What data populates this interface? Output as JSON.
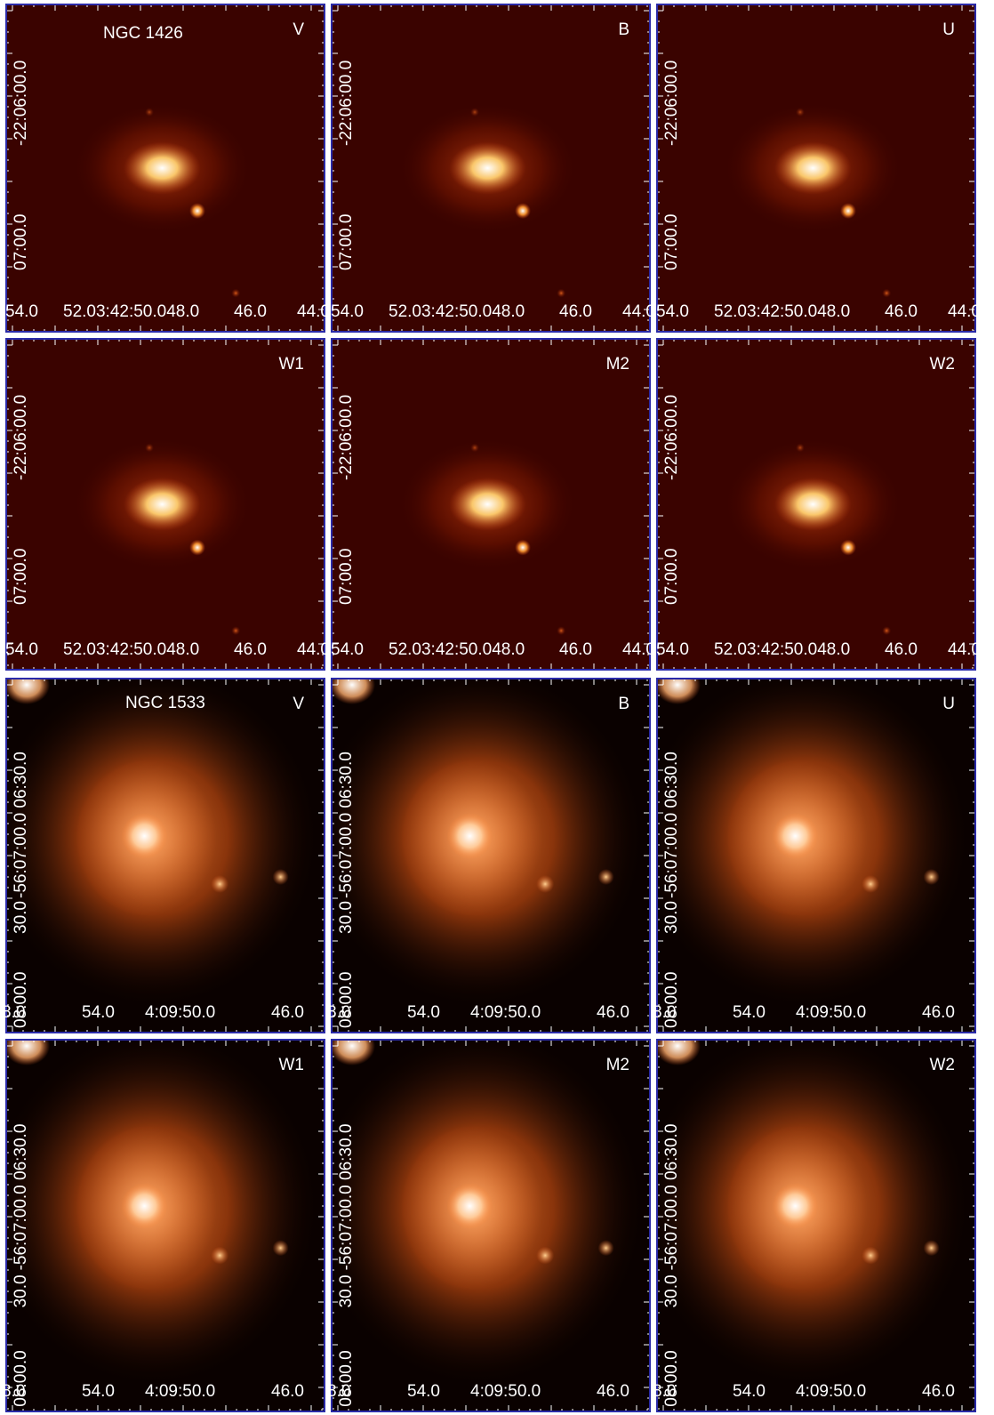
{
  "galaxies": [
    {
      "name": "NGC 1426",
      "x_axis_labels": [
        "54.0",
        "52.03:42:50.048.0",
        "46.0",
        "44.0"
      ],
      "y_axis_labels": [
        "-22:06:00.0",
        "07:00.0"
      ],
      "bands": [
        "V",
        "B",
        "U",
        "W1",
        "M2",
        "W2"
      ]
    },
    {
      "name": "NGC 1533",
      "x_axis_labels": [
        "8.0",
        "54.0",
        "4:09:50.0",
        "46.0"
      ],
      "y_axis_labels": [
        "-56:07:00.0 06:30.0",
        "30.0",
        "08:00.0"
      ],
      "bands": [
        "V",
        "B",
        "U",
        "W1",
        "M2",
        "W2"
      ]
    }
  ],
  "colors": {
    "frame": "#2a2aa8",
    "background_top": "#3a0000",
    "background_bottom": "#0a0000",
    "glow_core": "#ffffff",
    "glow_mid": "#ffb060",
    "glow_outer": "#d05010"
  }
}
